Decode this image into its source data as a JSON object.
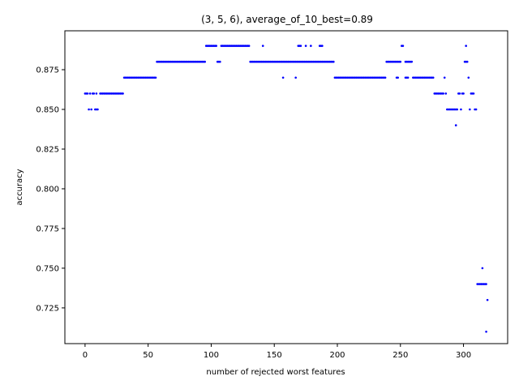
{
  "chart_data": {
    "type": "scatter",
    "title": "(3, 5, 6), average_of_10_best=0.89",
    "xlabel": "number of rejected worst features",
    "ylabel": "accuracy",
    "xlim": [
      -16,
      335
    ],
    "ylim": [
      0.7025,
      0.8995
    ],
    "xticks": [
      0,
      50,
      100,
      150,
      200,
      250,
      300
    ],
    "yticks": [
      0.725,
      0.75,
      0.775,
      0.8,
      0.825,
      0.85,
      0.875
    ],
    "ytick_labels": [
      "0.725",
      "0.750",
      "0.775",
      "0.800",
      "0.825",
      "0.850",
      "0.875"
    ],
    "grid": false,
    "marker_color": "#0000ff",
    "segments": [
      {
        "x_start": 0,
        "x_end": 2,
        "y": 0.86
      },
      {
        "x": 3,
        "y": 0.85
      },
      {
        "x": 4,
        "y": 0.86
      },
      {
        "x": 5,
        "y": 0.85
      },
      {
        "x_start": 6,
        "x_end": 7,
        "y": 0.86
      },
      {
        "x_start": 8,
        "x_end": 10,
        "y": 0.85
      },
      {
        "x": 9,
        "y": 0.86
      },
      {
        "x_start": 12,
        "x_end": 30,
        "y": 0.86
      },
      {
        "x_start": 31,
        "x_end": 56,
        "y": 0.87
      },
      {
        "x_start": 57,
        "x_end": 95,
        "y": 0.88
      },
      {
        "x_start": 96,
        "x_end": 104,
        "y": 0.89
      },
      {
        "x_start": 105,
        "x_end": 107,
        "y": 0.88
      },
      {
        "x_start": 108,
        "x_end": 130,
        "y": 0.89
      },
      {
        "x_start": 131,
        "x_end": 197,
        "y": 0.88
      },
      {
        "x": 141,
        "y": 0.89
      },
      {
        "x": 157,
        "y": 0.87
      },
      {
        "x": 167,
        "y": 0.87
      },
      {
        "x_start": 169,
        "x_end": 171,
        "y": 0.89
      },
      {
        "x": 175,
        "y": 0.89
      },
      {
        "x": 179,
        "y": 0.89
      },
      {
        "x_start": 186,
        "x_end": 188,
        "y": 0.89
      },
      {
        "x_start": 198,
        "x_end": 238,
        "y": 0.87
      },
      {
        "x_start": 239,
        "x_end": 250,
        "y": 0.88
      },
      {
        "x_start": 247,
        "x_end": 248,
        "y": 0.87
      },
      {
        "x_start": 251,
        "x_end": 252,
        "y": 0.89
      },
      {
        "x_start": 254,
        "x_end": 259,
        "y": 0.88
      },
      {
        "x_start": 254,
        "x_end": 256,
        "y": 0.87
      },
      {
        "x_start": 260,
        "x_end": 276,
        "y": 0.87
      },
      {
        "x_start": 277,
        "x_end": 284,
        "y": 0.86
      },
      {
        "x": 285,
        "y": 0.87
      },
      {
        "x": 286,
        "y": 0.86
      },
      {
        "x_start": 287,
        "x_end": 295,
        "y": 0.85
      },
      {
        "x": 294,
        "y": 0.84
      },
      {
        "x_start": 296,
        "x_end": 297,
        "y": 0.86
      },
      {
        "x": 298,
        "y": 0.85
      },
      {
        "x_start": 299,
        "x_end": 300,
        "y": 0.86
      },
      {
        "x_start": 301,
        "x_end": 303,
        "y": 0.88
      },
      {
        "x": 302,
        "y": 0.89
      },
      {
        "x": 304,
        "y": 0.87
      },
      {
        "x": 305,
        "y": 0.85
      },
      {
        "x_start": 306,
        "x_end": 308,
        "y": 0.86
      },
      {
        "x_start": 309,
        "x_end": 310,
        "y": 0.85
      },
      {
        "x_start": 311,
        "x_end": 318,
        "y": 0.74
      },
      {
        "x": 315,
        "y": 0.75
      },
      {
        "x": 319,
        "y": 0.73
      },
      {
        "x": 318,
        "y": 0.71
      }
    ]
  }
}
